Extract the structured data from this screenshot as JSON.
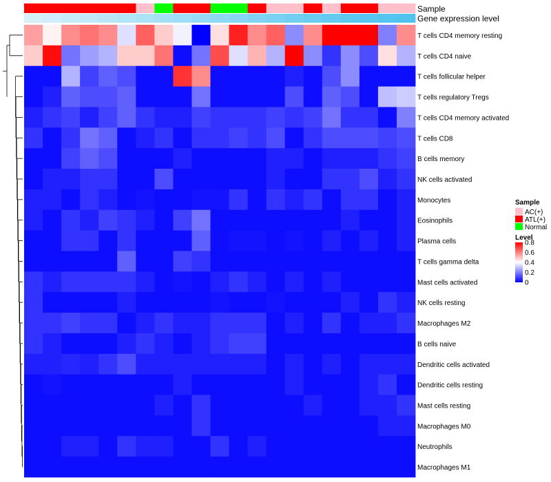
{
  "chart_data": {
    "type": "heatmap",
    "annotation_labels": [
      "Sample",
      "Gene expression level"
    ],
    "sample_annotation": [
      "ATL(+)",
      "ATL(+)",
      "ATL(+)",
      "ATL(+)",
      "ATL(+)",
      "ATL(+)",
      "AC(+)",
      "Normal",
      "ATL(+)",
      "ATL(+)",
      "Normal",
      "Normal",
      "ATL(+)",
      "AC(+)",
      "AC(+)",
      "ATL(+)",
      "AC(+)",
      "ATL(+)",
      "ATL(+)",
      "AC(+)",
      "AC(+)"
    ],
    "expression_level_annotation": [
      0.05,
      0.1,
      0.15,
      0.2,
      0.25,
      0.3,
      0.35,
      0.4,
      0.45,
      0.5,
      0.55,
      0.6,
      0.65,
      0.7,
      0.75,
      0.8,
      0.85,
      0.9,
      0.93,
      0.96,
      1.0
    ],
    "rows": [
      "T cells CD4 memory resting",
      "T cells CD4 naive",
      "T cells follicular helper",
      "T cells regulatory  Tregs",
      "T cells CD4 memory activated",
      "T cells CD8",
      "B cells memory",
      "NK cells activated",
      "Monocytes",
      "Eosinophils",
      "Plasma cells",
      "T cells gamma delta",
      "Mast cells activated",
      "NK cells resting",
      "Macrophages M2",
      "B cells naive",
      "Dendritic cells activated",
      "Dendritic cells resting",
      "Mast cells resting",
      "Macrophages M0",
      "Neutrophils",
      "Macrophages M1"
    ],
    "values": [
      [
        0.55,
        0.42,
        0.58,
        0.62,
        0.58,
        0.35,
        0.65,
        0.48,
        0.38,
        0.0,
        0.45,
        0.75,
        0.58,
        0.65,
        0.22,
        0.58,
        0.8,
        0.8,
        0.8,
        0.2,
        0.58
      ],
      [
        0.48,
        0.78,
        0.18,
        0.25,
        0.28,
        0.48,
        0.48,
        0.62,
        0.02,
        0.18,
        0.68,
        0.35,
        0.52,
        0.28,
        0.8,
        0.22,
        0.08,
        0.22,
        0.12,
        0.45,
        0.28
      ],
      [
        0.02,
        0.02,
        0.28,
        0.1,
        0.15,
        0.12,
        0.02,
        0.02,
        0.72,
        0.58,
        0.02,
        0.02,
        0.02,
        0.02,
        0.05,
        0.02,
        0.12,
        0.22,
        0.02,
        0.02,
        0.02
      ],
      [
        0.02,
        0.05,
        0.15,
        0.12,
        0.12,
        0.15,
        0.02,
        0.02,
        0.02,
        0.18,
        0.02,
        0.02,
        0.02,
        0.02,
        0.12,
        0.02,
        0.15,
        0.12,
        0.02,
        0.3,
        0.32
      ],
      [
        0.05,
        0.08,
        0.1,
        0.05,
        0.1,
        0.15,
        0.08,
        0.05,
        0.05,
        0.1,
        0.08,
        0.08,
        0.08,
        0.1,
        0.08,
        0.1,
        0.18,
        0.08,
        0.08,
        0.02,
        0.2
      ],
      [
        0.08,
        0.02,
        0.08,
        0.18,
        0.15,
        0.02,
        0.05,
        0.08,
        0.02,
        0.08,
        0.08,
        0.1,
        0.08,
        0.12,
        0.02,
        0.08,
        0.12,
        0.12,
        0.12,
        0.1,
        0.12
      ],
      [
        0.02,
        0.02,
        0.1,
        0.15,
        0.12,
        0.02,
        0.02,
        0.02,
        0.05,
        0.02,
        0.02,
        0.02,
        0.02,
        0.05,
        0.05,
        0.02,
        0.05,
        0.05,
        0.05,
        0.08,
        0.1
      ],
      [
        0.02,
        0.05,
        0.05,
        0.08,
        0.08,
        0.02,
        0.02,
        0.12,
        0.02,
        0.02,
        0.02,
        0.02,
        0.02,
        0.05,
        0.02,
        0.02,
        0.08,
        0.08,
        0.12,
        0.05,
        0.08
      ],
      [
        0.05,
        0.05,
        0.02,
        0.08,
        0.05,
        0.02,
        0.03,
        0.02,
        0.02,
        0.03,
        0.03,
        0.08,
        0.02,
        0.08,
        0.05,
        0.08,
        0.02,
        0.08,
        0.08,
        0.02,
        0.05
      ],
      [
        0.05,
        0.02,
        0.08,
        0.05,
        0.1,
        0.08,
        0.05,
        0.02,
        0.1,
        0.18,
        0.02,
        0.02,
        0.02,
        0.02,
        0.02,
        0.02,
        0.02,
        0.05,
        0.02,
        0.02,
        0.05
      ],
      [
        0.02,
        0.02,
        0.08,
        0.08,
        0.02,
        0.08,
        0.02,
        0.02,
        0.02,
        0.15,
        0.02,
        0.03,
        0.03,
        0.02,
        0.03,
        0.02,
        0.05,
        0.02,
        0.05,
        0.02,
        0.05
      ],
      [
        0.02,
        0.02,
        0.02,
        0.02,
        0.02,
        0.15,
        0.02,
        0.02,
        0.1,
        0.08,
        0.02,
        0.02,
        0.02,
        0.02,
        0.02,
        0.02,
        0.02,
        0.02,
        0.02,
        0.02,
        0.02
      ],
      [
        0.08,
        0.05,
        0.08,
        0.08,
        0.08,
        0.08,
        0.05,
        0.02,
        0.03,
        0.02,
        0.05,
        0.08,
        0.05,
        0.02,
        0.05,
        0.02,
        0.05,
        0.02,
        0.02,
        0.02,
        0.02
      ],
      [
        0.08,
        0.02,
        0.02,
        0.02,
        0.02,
        0.05,
        0.02,
        0.02,
        0.02,
        0.02,
        0.03,
        0.02,
        0.02,
        0.03,
        0.02,
        0.02,
        0.02,
        0.05,
        0.02,
        0.08,
        0.05
      ],
      [
        0.08,
        0.08,
        0.1,
        0.08,
        0.08,
        0.02,
        0.05,
        0.08,
        0.05,
        0.05,
        0.08,
        0.08,
        0.08,
        0.02,
        0.05,
        0.02,
        0.08,
        0.02,
        0.05,
        0.05,
        0.08
      ],
      [
        0.08,
        0.05,
        0.02,
        0.02,
        0.02,
        0.05,
        0.08,
        0.05,
        0.02,
        0.05,
        0.08,
        0.1,
        0.1,
        0.02,
        0.02,
        0.02,
        0.02,
        0.02,
        0.02,
        0.02,
        0.02
      ],
      [
        0.05,
        0.05,
        0.06,
        0.05,
        0.08,
        0.12,
        0.05,
        0.05,
        0.05,
        0.05,
        0.05,
        0.05,
        0.05,
        0.02,
        0.05,
        0.02,
        0.05,
        0.02,
        0.05,
        0.05,
        0.05
      ],
      [
        0.02,
        0.03,
        0.02,
        0.02,
        0.02,
        0.02,
        0.02,
        0.02,
        0.05,
        0.02,
        0.02,
        0.02,
        0.02,
        0.02,
        0.05,
        0.02,
        0.02,
        0.02,
        0.05,
        0.08,
        0.02
      ],
      [
        0.02,
        0.02,
        0.02,
        0.02,
        0.02,
        0.02,
        0.02,
        0.05,
        0.02,
        0.08,
        0.02,
        0.02,
        0.02,
        0.02,
        0.02,
        0.05,
        0.02,
        0.02,
        0.05,
        0.05,
        0.08
      ],
      [
        0.02,
        0.02,
        0.02,
        0.02,
        0.02,
        0.02,
        0.02,
        0.02,
        0.02,
        0.08,
        0.02,
        0.02,
        0.02,
        0.02,
        0.02,
        0.02,
        0.02,
        0.02,
        0.02,
        0.05,
        0.05
      ],
      [
        0.02,
        0.02,
        0.05,
        0.05,
        0.02,
        0.08,
        0.05,
        0.05,
        0.02,
        0.02,
        0.08,
        0.02,
        0.05,
        0.02,
        0.02,
        0.02,
        0.02,
        0.02,
        0.02,
        0.02,
        0.02
      ],
      [
        0.02,
        0.02,
        0.02,
        0.02,
        0.02,
        0.02,
        0.02,
        0.02,
        0.02,
        0.02,
        0.02,
        0.02,
        0.02,
        0.02,
        0.02,
        0.02,
        0.02,
        0.02,
        0.02,
        0.02,
        0.02
      ]
    ],
    "legend_sample": {
      "title": "Sample",
      "entries": [
        {
          "label": "AC(+)",
          "color": "#FFC0CB"
        },
        {
          "label": "ATL(+)",
          "color": "#FF0000"
        },
        {
          "label": "Normal",
          "color": "#00FF00"
        }
      ]
    },
    "legend_level": {
      "title": "Level",
      "ticks": [
        "0.8",
        "0.6",
        "0.4",
        "0.2",
        "0"
      ],
      "tick_values": [
        0.8,
        0.6,
        0.4,
        0.2,
        0.0
      ],
      "range": [
        0,
        0.8
      ]
    },
    "colors": {
      "low": "#0000FF",
      "mid": "#FFFFFF",
      "high": "#FF0000",
      "annotation_low": "#DDF2FB",
      "annotation_high": "#4FC3EE"
    }
  }
}
